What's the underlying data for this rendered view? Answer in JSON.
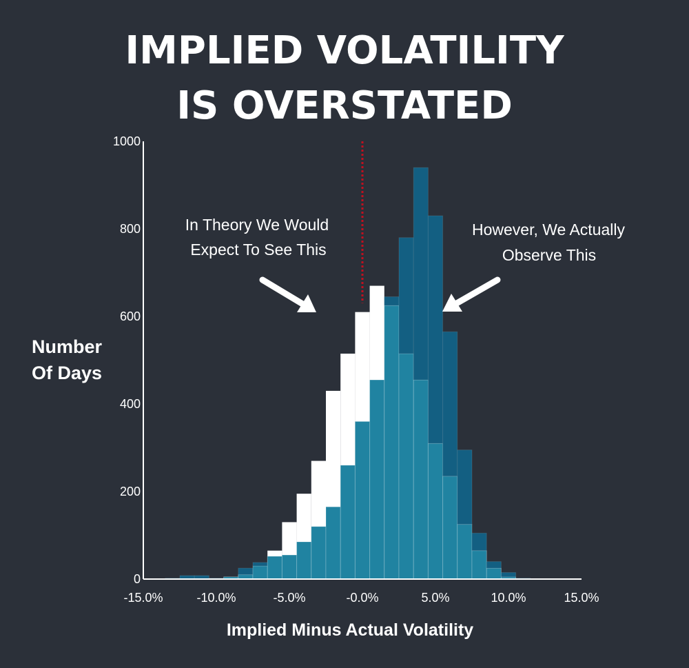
{
  "chart_data": {
    "type": "bar",
    "title_lines": [
      "IMPLIED VOLATILITY",
      "IS OVERSTATED"
    ],
    "xlabel": "Implied Minus Actual Volatility",
    "ylabel_lines": [
      "Number",
      "Of Days"
    ],
    "xlim": [
      -15,
      15
    ],
    "ylim": [
      0,
      1000
    ],
    "x_ticks": [
      -15,
      -10,
      -5,
      0,
      5,
      10,
      15
    ],
    "x_tick_labels": [
      "-15.0%",
      "-10.0%",
      "-5.0%",
      "-0.0%",
      "5.0%",
      "10.0%",
      "15.0%"
    ],
    "y_ticks": [
      0,
      200,
      400,
      600,
      800,
      1000
    ],
    "y_tick_labels": [
      "0",
      "200",
      "400",
      "600",
      "800",
      "1000"
    ],
    "bin_width": 1,
    "series": [
      {
        "role": "theoretical",
        "color": "#ffffff",
        "bins": [
          {
            "x": -9,
            "y": 5
          },
          {
            "x": -8,
            "y": 10
          },
          {
            "x": -7,
            "y": 30
          },
          {
            "x": -6,
            "y": 65
          },
          {
            "x": -5,
            "y": 130
          },
          {
            "x": -4,
            "y": 195
          },
          {
            "x": -3,
            "y": 270
          },
          {
            "x": -2,
            "y": 430
          },
          {
            "x": -1,
            "y": 515
          },
          {
            "x": 0,
            "y": 610
          },
          {
            "x": 1,
            "y": 670
          },
          {
            "x": 2,
            "y": 625
          },
          {
            "x": 3,
            "y": 515
          },
          {
            "x": 4,
            "y": 455
          },
          {
            "x": 5,
            "y": 310
          },
          {
            "x": 6,
            "y": 235
          },
          {
            "x": 7,
            "y": 125
          },
          {
            "x": 8,
            "y": 65
          },
          {
            "x": 9,
            "y": 25
          },
          {
            "x": 10,
            "y": 5
          }
        ]
      },
      {
        "role": "observed",
        "color": "#1f7ea0",
        "bins": [
          {
            "x": -13,
            "y": 2
          },
          {
            "x": -12,
            "y": 8
          },
          {
            "x": -11,
            "y": 8
          },
          {
            "x": -10,
            "y": 2
          },
          {
            "x": -9,
            "y": 5
          },
          {
            "x": -8,
            "y": 25
          },
          {
            "x": -7,
            "y": 38
          },
          {
            "x": -6,
            "y": 52
          },
          {
            "x": -5,
            "y": 55
          },
          {
            "x": -4,
            "y": 85
          },
          {
            "x": -3,
            "y": 120
          },
          {
            "x": -2,
            "y": 165
          },
          {
            "x": -1,
            "y": 260
          },
          {
            "x": 0,
            "y": 360
          },
          {
            "x": 1,
            "y": 455
          },
          {
            "x": 2,
            "y": 645
          },
          {
            "x": 3,
            "y": 780
          },
          {
            "x": 4,
            "y": 940
          },
          {
            "x": 5,
            "y": 830
          },
          {
            "x": 6,
            "y": 565
          },
          {
            "x": 7,
            "y": 295
          },
          {
            "x": 8,
            "y": 105
          },
          {
            "x": 9,
            "y": 40
          },
          {
            "x": 10,
            "y": 15
          },
          {
            "x": 11,
            "y": 2
          }
        ]
      }
    ],
    "reference_line": {
      "x": 0,
      "color": "#c0101f"
    },
    "annotations": [
      {
        "lines": [
          "In Theory We Would",
          "Expect To See This"
        ]
      },
      {
        "lines": [
          "However, We Actually",
          "Observe This"
        ]
      }
    ],
    "colors": {
      "background": "#2b3039",
      "observed_overlap": "#2083a1",
      "observed_alone": "#135f82"
    }
  }
}
